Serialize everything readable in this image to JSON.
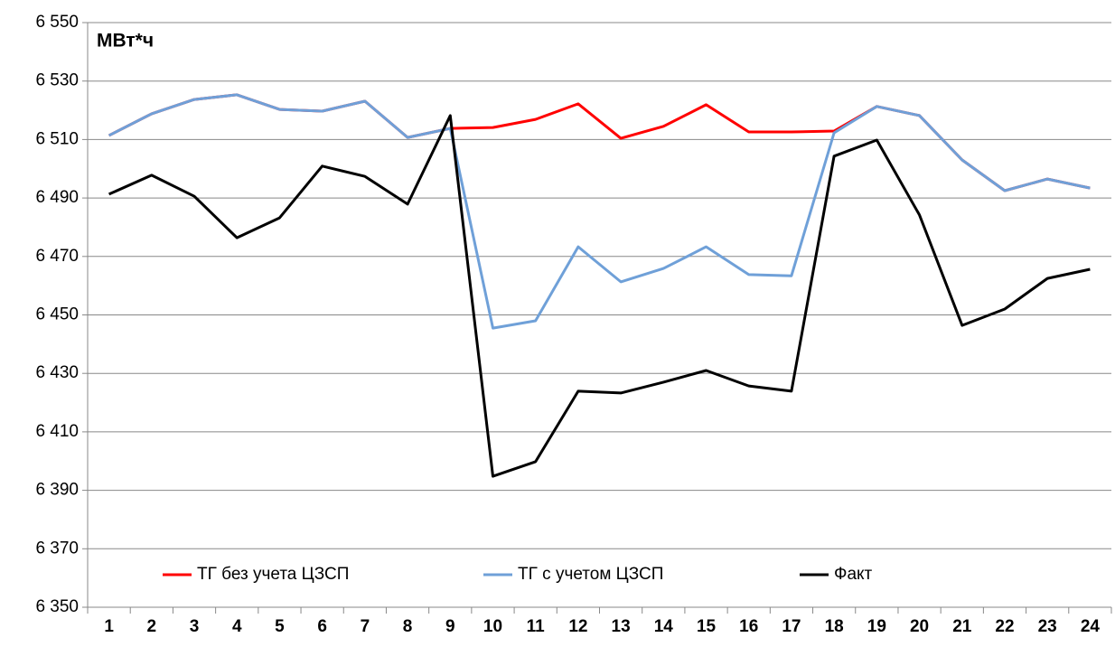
{
  "chart_data": {
    "type": "line",
    "y_label": "МВт*ч",
    "categories": [
      "1",
      "2",
      "3",
      "4",
      "5",
      "6",
      "7",
      "8",
      "9",
      "10",
      "11",
      "12",
      "13",
      "14",
      "15",
      "16",
      "17",
      "18",
      "19",
      "20",
      "21",
      "22",
      "23",
      "24"
    ],
    "series": [
      {
        "name": "ТГ без учета ЦЗСП",
        "color": "#ff0000",
        "values": [
          6511.4,
          6518.8,
          6523.7,
          6525.3,
          6520.3,
          6519.7,
          6523.1,
          6510.7,
          6513.8,
          6514.1,
          6516.9,
          6522.2,
          6510.4,
          6514.5,
          6521.9,
          6512.6,
          6512.6,
          6512.9,
          6521.3,
          6518.2,
          6503,
          6492.5,
          6496.5,
          6493.4
        ]
      },
      {
        "name": "ТГ с учетом ЦЗСП",
        "color": "#6fa0d8",
        "values": [
          6511.4,
          6518.8,
          6523.7,
          6525.3,
          6520.3,
          6519.7,
          6523.1,
          6510.7,
          6513.8,
          6445.5,
          6448,
          6473.3,
          6461.3,
          6465.9,
          6473.3,
          6463.8,
          6463.4,
          6512.3,
          6521.3,
          6518.2,
          6503,
          6492.5,
          6496.5,
          6493.4
        ]
      },
      {
        "name": "Факт",
        "color": "#000000",
        "values": [
          6491.3,
          6497.8,
          6490.6,
          6476.4,
          6483.2,
          6500.9,
          6497.4,
          6487.9,
          6518.2,
          6394.8,
          6399.8,
          6423.9,
          6423.3,
          6427,
          6431,
          6425.7,
          6423.9,
          6504.3,
          6509.8,
          6484.2,
          6446.4,
          6452,
          6462.5,
          6465.6
        ]
      }
    ],
    "ylim": [
      6350,
      6550
    ],
    "yticks": [
      {
        "value": 6350,
        "label": "6 350"
      },
      {
        "value": 6370,
        "label": "6 370"
      },
      {
        "value": 6390,
        "label": "6 390"
      },
      {
        "value": 6410,
        "label": "6 410"
      },
      {
        "value": 6430,
        "label": "6 430"
      },
      {
        "value": 6450,
        "label": "6 450"
      },
      {
        "value": 6470,
        "label": "6 470"
      },
      {
        "value": 6490,
        "label": "6 490"
      },
      {
        "value": 6510,
        "label": "6 510"
      },
      {
        "value": 6530,
        "label": "6 530"
      },
      {
        "value": 6550,
        "label": "6 550"
      }
    ],
    "grid": true,
    "legend": "bottom"
  }
}
